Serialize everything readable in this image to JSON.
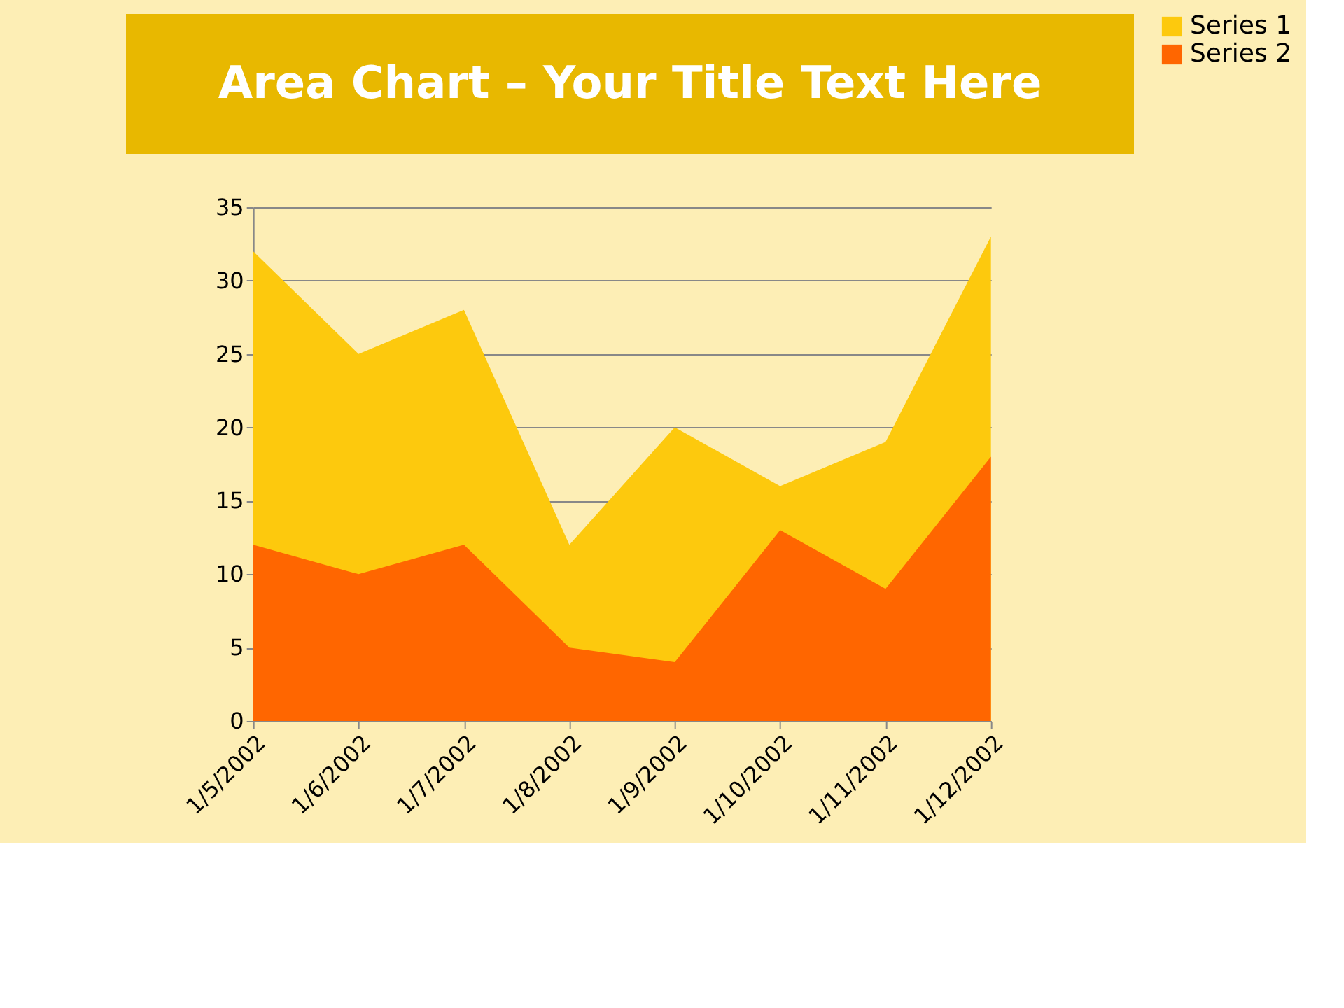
{
  "chart_data": {
    "type": "area",
    "title": "Area Chart – Your Title Text Here",
    "categories": [
      "1/5/2002",
      "1/6/2002",
      "1/7/2002",
      "1/8/2002",
      "1/9/2002",
      "1/10/2002",
      "1/11/2002",
      "1/12/2002"
    ],
    "series": [
      {
        "name": "Series 1",
        "color": "#fdc90d",
        "values": [
          32,
          25,
          28,
          12,
          20,
          16,
          19,
          33
        ]
      },
      {
        "name": "Series 2",
        "color": "#ff6600",
        "values": [
          12,
          10,
          12,
          5,
          4,
          13,
          9,
          18
        ]
      }
    ],
    "ylim": [
      0,
      35
    ],
    "yticks": [
      0,
      5,
      10,
      15,
      20,
      25,
      30,
      35
    ],
    "grid": "y",
    "legend": "right"
  }
}
